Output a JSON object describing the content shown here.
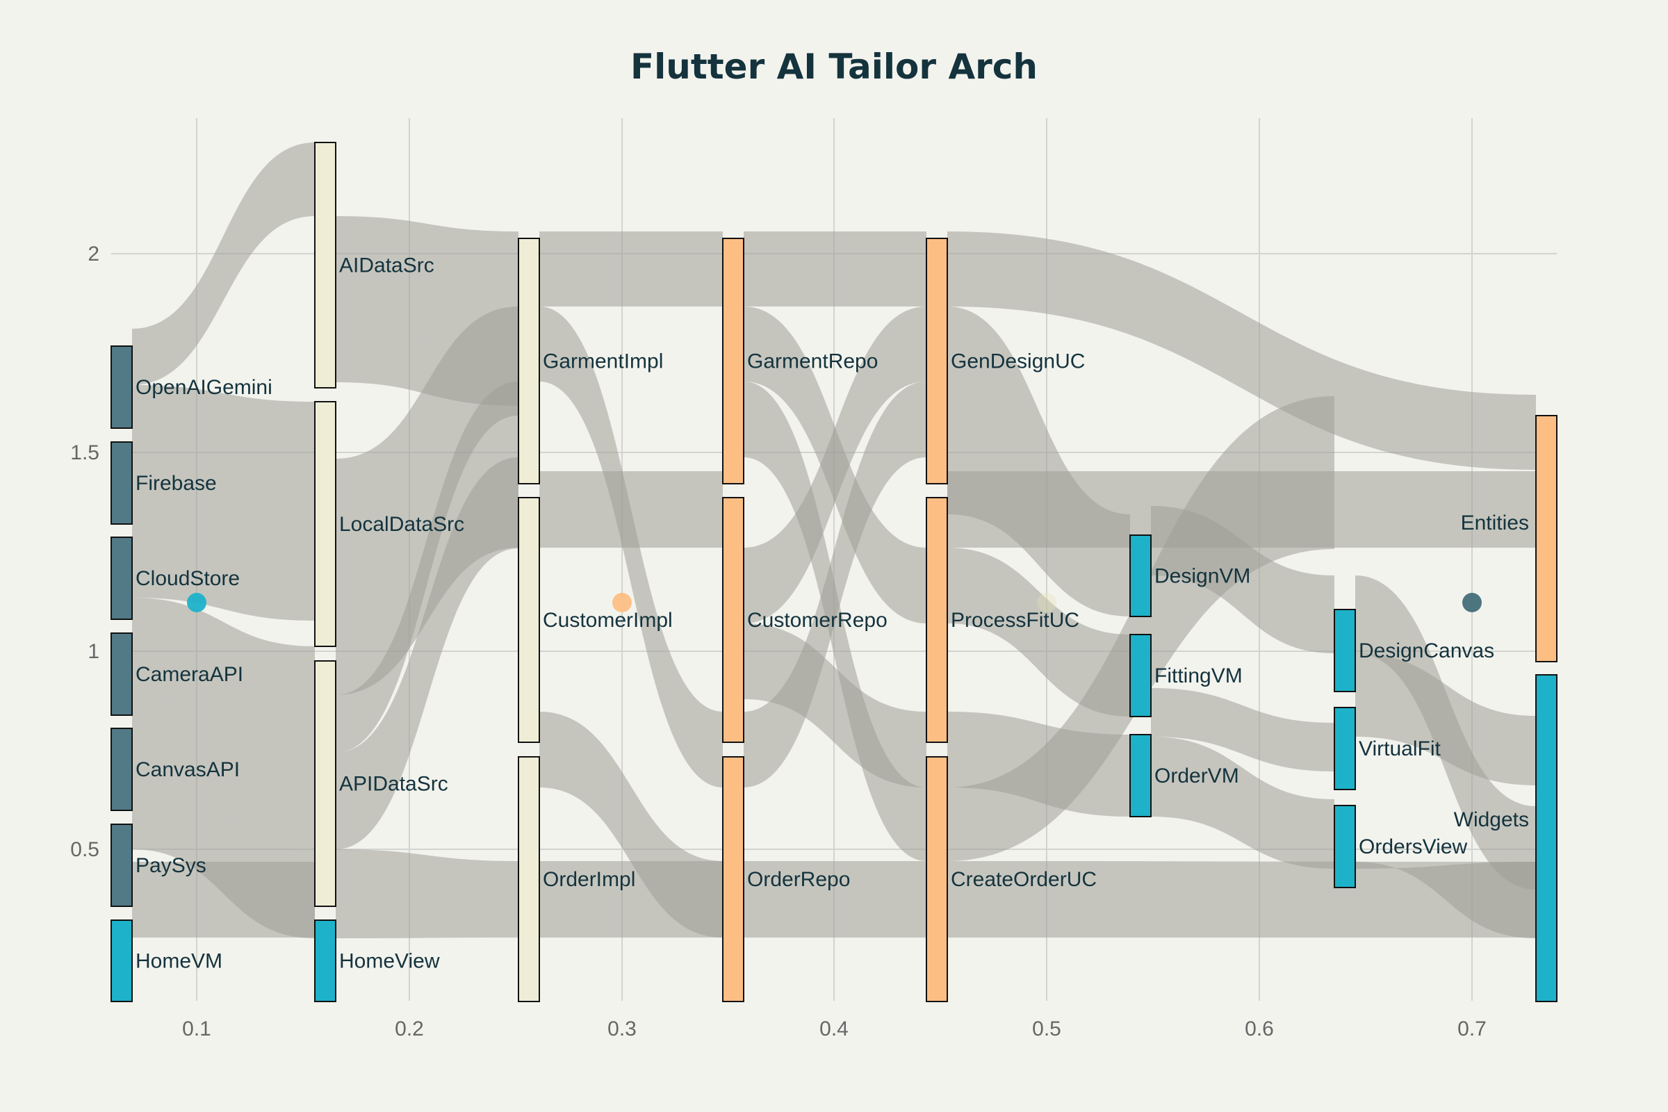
{
  "title": "Flutter AI Tailor Arch",
  "chart_data": {
    "type": "sankey",
    "x_ticks": [
      "0.1",
      "0.2",
      "0.3",
      "0.4",
      "0.5",
      "0.6",
      "0.7"
    ],
    "y_ticks": [
      "0.5",
      "1",
      "1.5",
      "2"
    ],
    "node_colors": {
      "slate": "#527a86",
      "cream": "#efedd6",
      "orange": "#fdbe84",
      "cyan": "#1db2c9"
    },
    "link_color": "#9e9e98",
    "marker_colors": [
      "#1db2c9",
      "#fdbe84",
      "#e5e3b5",
      "#426e78"
    ],
    "nodes": [
      {
        "label": "OpenAIGemini",
        "color": "slate"
      },
      {
        "label": "Firebase",
        "color": "slate"
      },
      {
        "label": "CloudStore",
        "color": "slate"
      },
      {
        "label": "CameraAPI",
        "color": "slate"
      },
      {
        "label": "CanvasAPI",
        "color": "slate"
      },
      {
        "label": "PaySys",
        "color": "slate"
      },
      {
        "label": "HomeVM",
        "color": "cyan"
      },
      {
        "label": "AIDataSrc",
        "color": "cream"
      },
      {
        "label": "LocalDataSrc",
        "color": "cream"
      },
      {
        "label": "APIDataSrc",
        "color": "cream"
      },
      {
        "label": "HomeView",
        "color": "cyan"
      },
      {
        "label": "GarmentImpl",
        "color": "cream"
      },
      {
        "label": "CustomerImpl",
        "color": "cream"
      },
      {
        "label": "OrderImpl",
        "color": "cream"
      },
      {
        "label": "GarmentRepo",
        "color": "orange"
      },
      {
        "label": "CustomerRepo",
        "color": "orange"
      },
      {
        "label": "OrderRepo",
        "color": "orange"
      },
      {
        "label": "GenDesignUC",
        "color": "orange"
      },
      {
        "label": "ProcessFitUC",
        "color": "orange"
      },
      {
        "label": "CreateOrderUC",
        "color": "orange"
      },
      {
        "label": "DesignVM",
        "color": "cyan"
      },
      {
        "label": "FittingVM",
        "color": "cyan"
      },
      {
        "label": "OrderVM",
        "color": "cyan"
      },
      {
        "label": "DesignCanvas",
        "color": "cyan"
      },
      {
        "label": "VirtualFit",
        "color": "cyan"
      },
      {
        "label": "OrdersView",
        "color": "cyan"
      },
      {
        "label": "Entities",
        "color": "orange"
      },
      {
        "label": "Widgets",
        "color": "cyan"
      }
    ]
  }
}
